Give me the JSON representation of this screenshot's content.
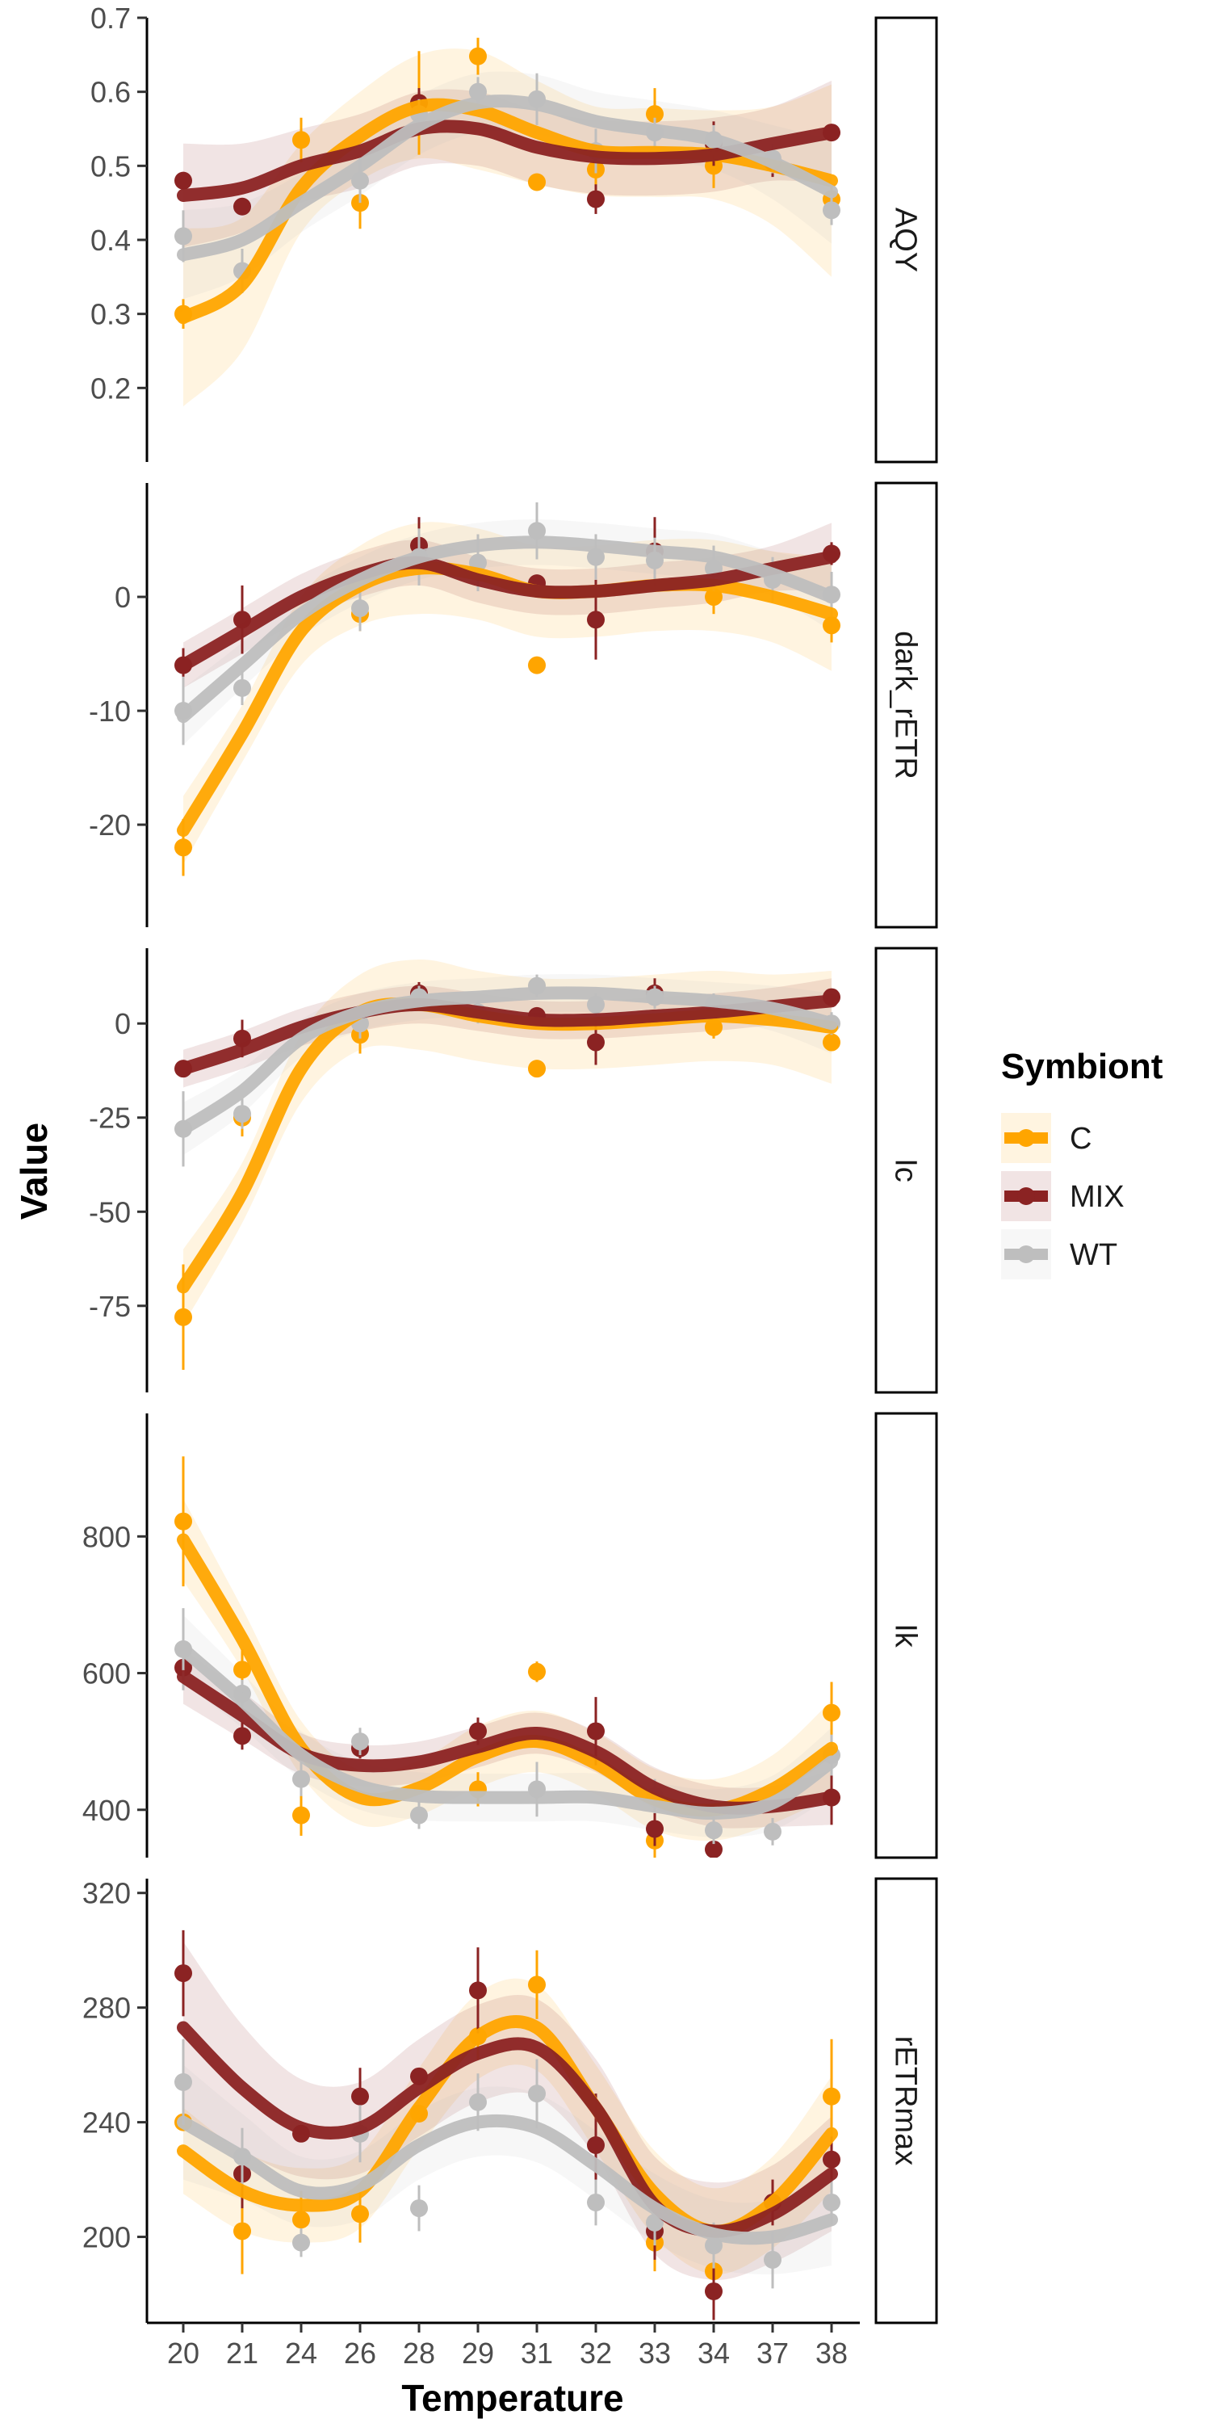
{
  "chart_data": {
    "type": "line",
    "xlabel": "Temperature",
    "ylabel": "Value",
    "x_categories": [
      "20",
      "21",
      "24",
      "26",
      "28",
      "29",
      "31",
      "32",
      "33",
      "34",
      "37",
      "38"
    ],
    "legend": {
      "title": "Symbiont",
      "placement": "right",
      "entries": [
        "C",
        "MIX",
        "WT"
      ]
    },
    "colors": {
      "C": "#FFA500",
      "MIX": "#8B2323",
      "WT": "#BEBEBE"
    },
    "panels": [
      {
        "label": "AQY",
        "ylim": [
          0.1,
          0.7
        ],
        "yticks": [
          0.2,
          0.3,
          0.4,
          0.5,
          0.6,
          0.7
        ],
        "ytick_labels": [
          "0.2",
          "0.3",
          "0.4",
          "0.5",
          "0.6",
          "0.7"
        ],
        "series": [
          {
            "name": "C",
            "points": [
              0.3,
              null,
              0.535,
              0.45,
              0.585,
              0.648,
              0.478,
              0.495,
              0.57,
              0.5,
              null,
              0.455
            ],
            "err": [
              0.02,
              0,
              0.03,
              0.035,
              0.07,
              0.025,
              0.01,
              0.03,
              0.035,
              0.03,
              0,
              0.02
            ],
            "smooth": [
              0.295,
              0.34,
              0.47,
              0.54,
              0.58,
              0.575,
              0.545,
              0.52,
              0.518,
              0.515,
              0.5,
              0.48
            ],
            "band": [
              0.12,
              0.09,
              0.06,
              0.06,
              0.07,
              0.08,
              0.07,
              0.06,
              0.06,
              0.06,
              0.08,
              0.13
            ]
          },
          {
            "name": "MIX",
            "points": [
              0.48,
              0.445,
              null,
              null,
              0.585,
              null,
              null,
              0.455,
              null,
              0.53,
              0.505,
              0.545
            ],
            "err": [
              0,
              0,
              0,
              0,
              0.02,
              0,
              0,
              0.02,
              0,
              0.03,
              0.02,
              0
            ],
            "smooth": [
              0.46,
              0.47,
              0.5,
              0.52,
              0.55,
              0.55,
              0.525,
              0.512,
              0.51,
              0.515,
              0.53,
              0.545
            ],
            "band": [
              0.07,
              0.06,
              0.05,
              0.05,
              0.05,
              0.05,
              0.05,
              0.05,
              0.05,
              0.05,
              0.05,
              0.07
            ]
          },
          {
            "name": "WT",
            "points": [
              0.405,
              0.358,
              null,
              0.48,
              0.57,
              0.6,
              0.59,
              0.52,
              0.545,
              0.535,
              0.51,
              0.44
            ],
            "err": [
              0.035,
              0.03,
              0,
              0.03,
              0.02,
              0.02,
              0.035,
              0.03,
              0.02,
              0.02,
              0.02,
              0.02
            ],
            "smooth": [
              0.38,
              0.4,
              0.45,
              0.5,
              0.555,
              0.585,
              0.583,
              0.56,
              0.548,
              0.535,
              0.505,
              0.465
            ],
            "band": [
              0.06,
              0.05,
              0.04,
              0.04,
              0.04,
              0.04,
              0.04,
              0.04,
              0.04,
              0.04,
              0.05,
              0.07
            ]
          }
        ]
      },
      {
        "label": "dark_rETR",
        "ylim": [
          -29,
          10
        ],
        "yticks": [
          -20,
          -10,
          0
        ],
        "ytick_labels": [
          "-20",
          "-10",
          "0"
        ],
        "series": [
          {
            "name": "C",
            "points": [
              -22,
              null,
              null,
              -1.5,
              null,
              null,
              -6,
              null,
              null,
              0,
              null,
              -2.5
            ],
            "err": [
              2.5,
              0,
              0,
              1.5,
              0,
              0,
              0.3,
              0,
              0,
              1.5,
              0,
              1.5
            ],
            "smooth": [
              -20.5,
              -12,
              -3,
              1,
              2.5,
              2,
              0.5,
              0.5,
              1,
              1,
              0,
              -1.5
            ],
            "band": [
              3,
              2.5,
              3,
              3.5,
              4,
              4,
              4,
              4,
              4,
              4,
              4,
              5
            ]
          },
          {
            "name": "MIX",
            "points": [
              -6,
              -2,
              null,
              null,
              4.5,
              null,
              1.2,
              -2,
              4,
              null,
              null,
              3.8
            ],
            "err": [
              1.5,
              3,
              0,
              0,
              2.5,
              0,
              0,
              3.5,
              3,
              0,
              0,
              1
            ],
            "smooth": [
              -6,
              -3,
              0,
              2,
              3,
              1.5,
              0.5,
              0.5,
              1,
              1.5,
              2.5,
              3.5
            ],
            "band": [
              2,
              2,
              2,
              2,
              2,
              2,
              2,
              2,
              2,
              2,
              2,
              3
            ]
          },
          {
            "name": "WT",
            "points": [
              -10,
              -8,
              null,
              -1,
              3.5,
              3,
              5.8,
              3.5,
              3.2,
              2.5,
              1.5,
              0.2
            ],
            "err": [
              3,
              1.5,
              0,
              2,
              2.5,
              2.5,
              2.5,
              2,
              2,
              2,
              2,
              2
            ],
            "smooth": [
              -10.5,
              -6,
              -1.5,
              1.5,
              3.5,
              4.5,
              4.8,
              4.5,
              4,
              3.5,
              2,
              0
            ],
            "band": [
              2.5,
              2,
              2,
              2,
              2,
              2,
              2,
              2,
              2,
              2,
              2,
              3
            ]
          }
        ]
      },
      {
        "label": "Ic",
        "ylim": [
          -98,
          20
        ],
        "yticks": [
          -75,
          -50,
          -25,
          0
        ],
        "ytick_labels": [
          "-75",
          "-50",
          "-25",
          "0"
        ],
        "series": [
          {
            "name": "C",
            "points": [
              -78,
              -25,
              null,
              -3,
              null,
              null,
              -12,
              null,
              null,
              -1,
              null,
              -5
            ],
            "err": [
              14,
              5,
              0,
              5,
              0,
              0,
              1,
              0,
              0,
              3,
              0,
              2
            ],
            "smooth": [
              -70,
              -45,
              -12,
              3,
              5,
              2,
              0,
              0,
              1,
              2,
              1,
              -1
            ],
            "band": [
              10,
              8,
              9,
              10,
              12,
              12,
              12,
              12,
              12,
              12,
              12,
              15
            ]
          },
          {
            "name": "MIX",
            "points": [
              -12,
              -4,
              null,
              null,
              8,
              null,
              2,
              -5,
              8,
              null,
              null,
              7
            ],
            "err": [
              0,
              5,
              0,
              0,
              3,
              0,
              0,
              6,
              4,
              0,
              0,
              0
            ],
            "smooth": [
              -12,
              -7,
              -1,
              3,
              5,
              3,
              1,
              1,
              2,
              3,
              4.5,
              6
            ],
            "band": [
              5,
              5,
              5,
              5,
              5,
              5,
              5,
              5,
              5,
              5,
              5,
              6
            ]
          },
          {
            "name": "WT",
            "points": [
              -28,
              -24,
              null,
              0,
              7,
              3,
              10,
              5,
              7,
              5,
              3,
              0
            ],
            "err": [
              10,
              4,
              0,
              4,
              3,
              3,
              3,
              3,
              3,
              3,
              3,
              3
            ],
            "smooth": [
              -28,
              -18,
              -4,
              3,
              6,
              7,
              8,
              8,
              7,
              6,
              4,
              0
            ],
            "band": [
              7,
              6,
              5,
              5,
              5,
              5,
              5,
              5,
              5,
              5,
              6,
              8
            ]
          }
        ]
      },
      {
        "label": "Ik",
        "ylim": [
          330,
          980
        ],
        "yticks": [
          400,
          600,
          800
        ],
        "ytick_labels": [
          "400",
          "600",
          "800"
        ],
        "series": [
          {
            "name": "C",
            "points": [
              822,
              605,
              392,
              null,
              null,
              430,
              602,
              null,
              355,
              null,
              null,
              542
            ],
            "err": [
              95,
              30,
              30,
              0,
              0,
              25,
              15,
              0,
              35,
              0,
              0,
              45
            ],
            "smooth": [
              795,
              650,
              490,
              418,
              432,
              478,
              500,
              468,
              415,
              400,
              430,
              490
            ],
            "band": [
              60,
              45,
              40,
              40,
              40,
              45,
              45,
              45,
              45,
              45,
              50,
              70
            ]
          },
          {
            "name": "MIX",
            "points": [
              608,
              508,
              null,
              490,
              null,
              515,
              null,
              515,
              372,
              342,
              null,
              418
            ],
            "err": [
              20,
              20,
              0,
              15,
              0,
              20,
              25,
              50,
              25,
              25,
              0,
              40
            ],
            "smooth": [
              595,
              538,
              482,
              465,
              470,
              492,
              512,
              485,
              432,
              405,
              405,
              418
            ],
            "band": [
              40,
              35,
              30,
              30,
              30,
              30,
              30,
              30,
              30,
              30,
              30,
              40
            ]
          },
          {
            "name": "WT",
            "points": [
              635,
              570,
              445,
              500,
              392,
              null,
              430,
              null,
              420,
              370,
              368,
              480
            ],
            "err": [
              60,
              20,
              25,
              20,
              20,
              0,
              40,
              30,
              25,
              20,
              20,
              30
            ],
            "smooth": [
              635,
              560,
              480,
              435,
              420,
              418,
              418,
              418,
              405,
              395,
              410,
              470
            ],
            "band": [
              50,
              40,
              35,
              35,
              35,
              35,
              35,
              35,
              35,
              35,
              40,
              50
            ]
          }
        ]
      },
      {
        "label": "rETRmax",
        "ylim": [
          170,
          325
        ],
        "yticks": [
          200,
          240,
          280,
          320
        ],
        "ytick_labels": [
          "200",
          "240",
          "280",
          "320"
        ],
        "series": [
          {
            "name": "C",
            "points": [
              240,
              202,
              206,
              208,
              243,
              270,
              288,
              null,
              198,
              188,
              null,
              249
            ],
            "err": [
              0,
              15,
              10,
              10,
              0,
              8,
              12,
              0,
              10,
              10,
              0,
              20
            ],
            "smooth": [
              230,
              216,
              211,
              216,
              245,
              270,
              273,
              245,
              215,
              202,
              212,
              236
            ],
            "band": [
              15,
              14,
              13,
              13,
              14,
              15,
              15,
              15,
              15,
              15,
              16,
              20
            ]
          },
          {
            "name": "MIX",
            "points": [
              292,
              222,
              236,
              249,
              256,
              286,
              null,
              232,
              202,
              181,
              212,
              227
            ],
            "err": [
              15,
              12,
              0,
              10,
              0,
              15,
              0,
              18,
              10,
              10,
              8,
              8
            ],
            "smooth": [
              273,
              252,
              238,
              238,
              252,
              264,
              266,
              245,
              211,
              202,
              208,
              222
            ],
            "band": [
              30,
              22,
              17,
              16,
              17,
              17,
              17,
              17,
              17,
              17,
              17,
              20
            ]
          },
          {
            "name": "WT",
            "points": [
              254,
              228,
              198,
              236,
              210,
              247,
              250,
              212,
              205,
              197,
              192,
              212
            ],
            "err": [
              15,
              10,
              5,
              10,
              8,
              10,
              12,
              8,
              8,
              8,
              10,
              8
            ],
            "smooth": [
              240,
              228,
              216,
              218,
              232,
              240,
              238,
              225,
              210,
              201,
              200,
              206
            ],
            "band": [
              20,
              15,
              12,
              12,
              12,
              12,
              12,
              12,
              12,
              12,
              13,
              16
            ]
          }
        ]
      }
    ]
  }
}
